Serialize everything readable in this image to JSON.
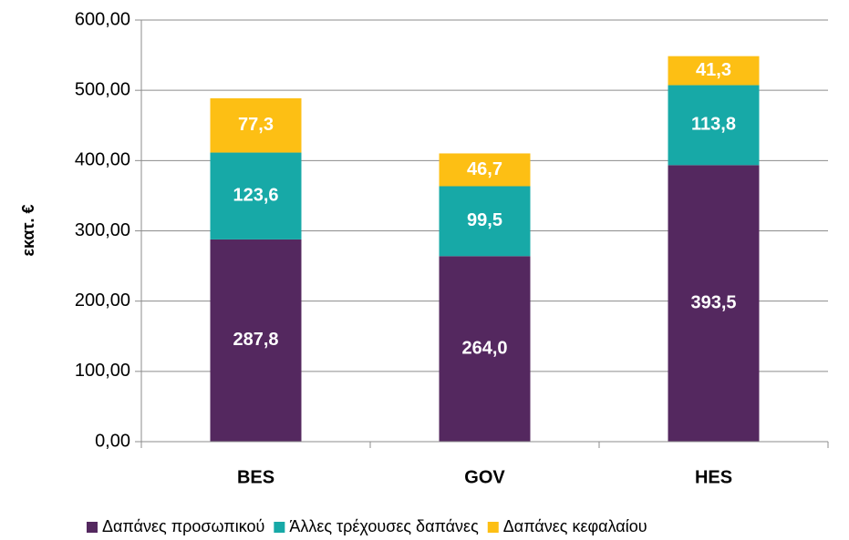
{
  "chart_data": {
    "type": "stacked_bar",
    "y_label": "εκατ. €",
    "categories": [
      "BES",
      "GOV",
      "HES"
    ],
    "series": [
      {
        "name": "Δαπάνες προσωπικού",
        "color": "#54285f",
        "values": [
          287.8,
          264.0,
          393.5
        ],
        "value_labels": [
          "287,8",
          "264,0",
          "393,5"
        ]
      },
      {
        "name": "Άλλες τρέχουσες δαπάνες",
        "color": "#17a9a7",
        "values": [
          123.6,
          99.5,
          113.8
        ],
        "value_labels": [
          "123,6",
          "99,5",
          "113,8"
        ]
      },
      {
        "name": "Δαπάνες κεφαλαίου",
        "color": "#fdbf14",
        "values": [
          77.3,
          46.7,
          41.3
        ],
        "value_labels": [
          "77,3",
          "46,7",
          "41,3"
        ]
      }
    ],
    "ylim": [
      0,
      600
    ],
    "yticks": [
      {
        "value": 0,
        "label": "0,00"
      },
      {
        "value": 100,
        "label": "100,00"
      },
      {
        "value": 200,
        "label": "200,00"
      },
      {
        "value": 300,
        "label": "300,00"
      },
      {
        "value": 400,
        "label": "400,00"
      },
      {
        "value": 500,
        "label": "500,00"
      },
      {
        "value": 600,
        "label": "600,00"
      }
    ],
    "grid": true,
    "legend": "bottom"
  }
}
